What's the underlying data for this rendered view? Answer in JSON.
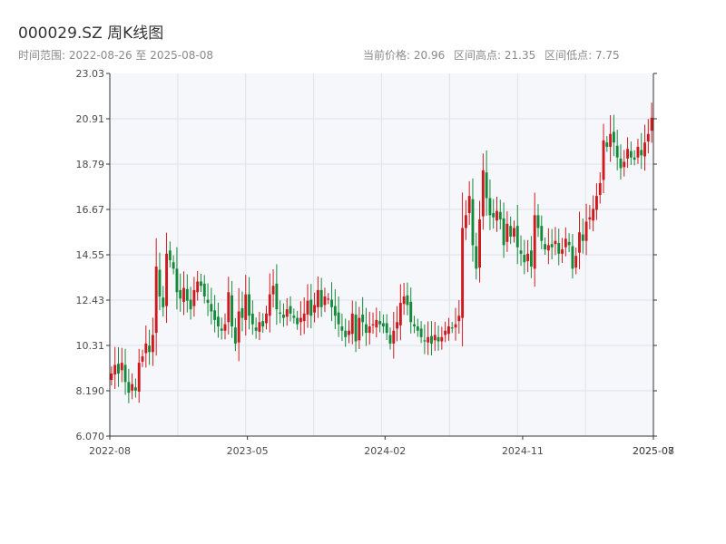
{
  "header": {
    "title": "000029.SZ 周K线图",
    "subtitle": "时间范围: 2022-08-26 至 2025-08-08",
    "stats": {
      "current": "当前价格: 20.96",
      "high": "区间高点: 21.35",
      "low": "区间低点: 7.75"
    }
  },
  "chart_data": {
    "type": "candlestick",
    "title": "000029.SZ 周K线图",
    "xlabel": "",
    "ylabel": "",
    "ylim": [
      6.07,
      23.03
    ],
    "y_ticks": [
      "6.070",
      "8.190",
      "10.31",
      "12.43",
      "14.55",
      "16.67",
      "18.79",
      "20.91",
      "23.03"
    ],
    "x_ticks": [
      "2022-08",
      "2023-05",
      "2024-02",
      "2024-11",
      "2025-07",
      "2025-08"
    ],
    "x_tick_index": [
      0,
      40,
      80,
      120,
      158,
      159
    ],
    "grid": true,
    "colors": {
      "up": "#d0191e",
      "down": "#138a3a",
      "plot_bg": "#f6f7fa",
      "grid": "#e0e2e8"
    },
    "closes": [
      9.0,
      9.4,
      9.0,
      9.5,
      8.6,
      8.1,
      8.5,
      8.2,
      9.5,
      9.8,
      10.4,
      10.0,
      10.8,
      14.0,
      12.6,
      12.1,
      14.6,
      14.3,
      13.9,
      12.8,
      12.5,
      13.0,
      12.4,
      12.0,
      12.9,
      13.3,
      13.1,
      12.6,
      12.3,
      11.9,
      11.5,
      11.2,
      11.0,
      11.3,
      12.8,
      11.2,
      10.4,
      11.9,
      11.6,
      12.7,
      11.7,
      11.3,
      11.0,
      11.4,
      11.2,
      11.8,
      12.7,
      13.1,
      12.0,
      11.8,
      11.6,
      12.0,
      11.8,
      11.6,
      11.3,
      11.6,
      11.8,
      12.4,
      11.7,
      12.2,
      12.9,
      12.1,
      12.6,
      12.5,
      12.1,
      11.7,
      11.3,
      11.0,
      10.7,
      11.0,
      11.8,
      10.5,
      11.6,
      11.4,
      10.9,
      11.2,
      11.3,
      11.5,
      11.3,
      11.2,
      10.9,
      10.4,
      11.0,
      11.4,
      12.3,
      12.6,
      12.2,
      11.4,
      11.2,
      11.0,
      10.7,
      10.5,
      10.7,
      10.4,
      10.8,
      10.5,
      10.7,
      11.0,
      11.2,
      11.1,
      11.3,
      11.7,
      15.8,
      16.4,
      17.3,
      15.0,
      13.9,
      16.2,
      18.5,
      17.2,
      16.4,
      16.3,
      16.6,
      16.2,
      15.0,
      16.0,
      15.4,
      15.8,
      14.9,
      14.6,
      14.2,
      14.6,
      14.0,
      16.4,
      15.8,
      15.2,
      14.8,
      15.0,
      14.9,
      15.2,
      14.6,
      14.8,
      15.3,
      15.0,
      13.9,
      14.5,
      15.6,
      15.2,
      16.1,
      16.3,
      16.7,
      17.3,
      17.9,
      19.9,
      19.6,
      20.2,
      19.8,
      19.1,
      18.6,
      18.9,
      19.5,
      19.1,
      19.0,
      19.6,
      19.2,
      19.8,
      20.2,
      20.96
    ],
    "note": "weekly OHLC candlesticks; red = up, green = down"
  }
}
